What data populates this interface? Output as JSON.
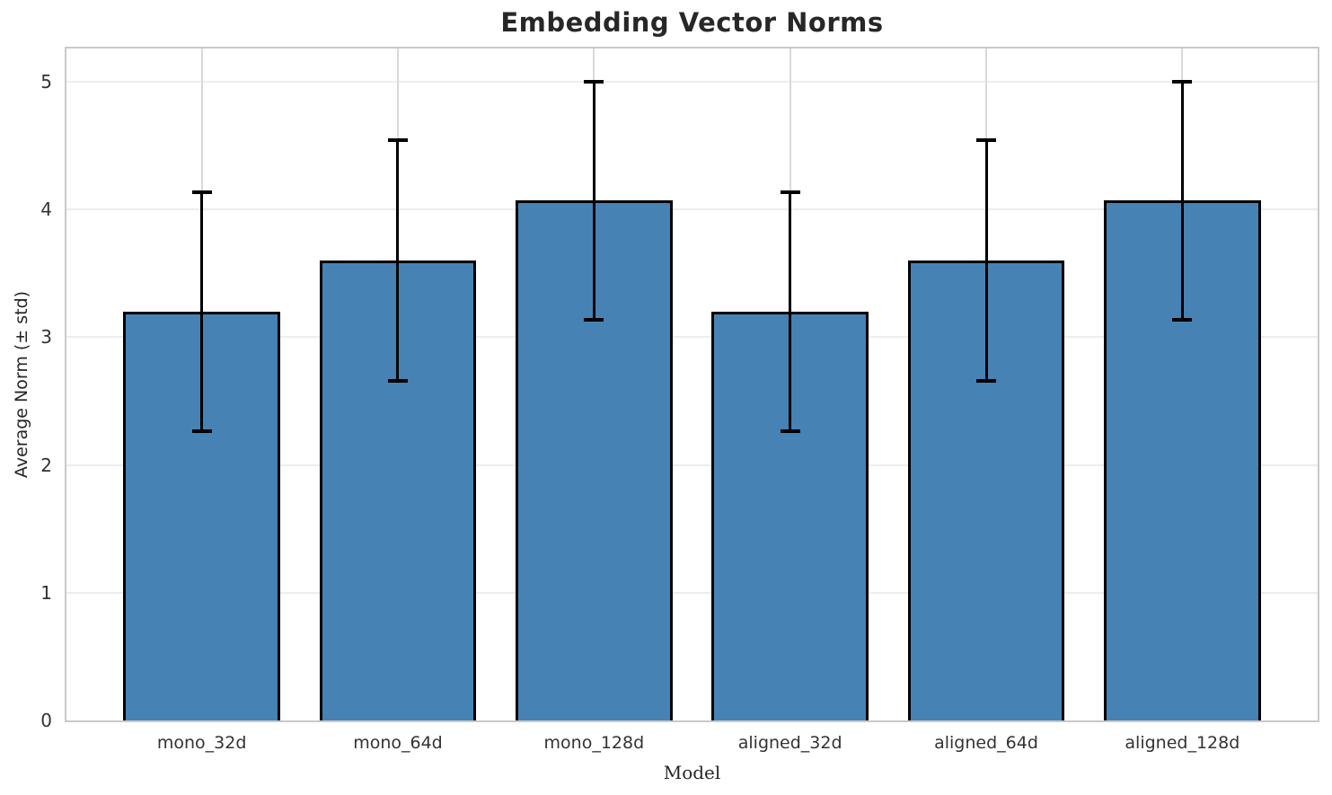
{
  "chart_data": {
    "type": "bar",
    "title": "Embedding Vector Norms",
    "xlabel": "Model",
    "ylabel": "Average Norm (± std)",
    "categories": [
      "mono_32d",
      "mono_64d",
      "mono_128d",
      "aligned_32d",
      "aligned_64d",
      "aligned_128d"
    ],
    "values": [
      3.2,
      3.6,
      4.07,
      3.2,
      3.6,
      4.07
    ],
    "errors": [
      0.94,
      0.95,
      0.94,
      0.94,
      0.95,
      0.94
    ],
    "yticks": [
      0,
      1,
      2,
      3,
      4,
      5
    ],
    "ylim": [
      0,
      5.26
    ],
    "grid": true,
    "legend": "none",
    "bar_color": "#4682B4",
    "bar_edge_color": "#000000",
    "error_color": "#000000"
  }
}
